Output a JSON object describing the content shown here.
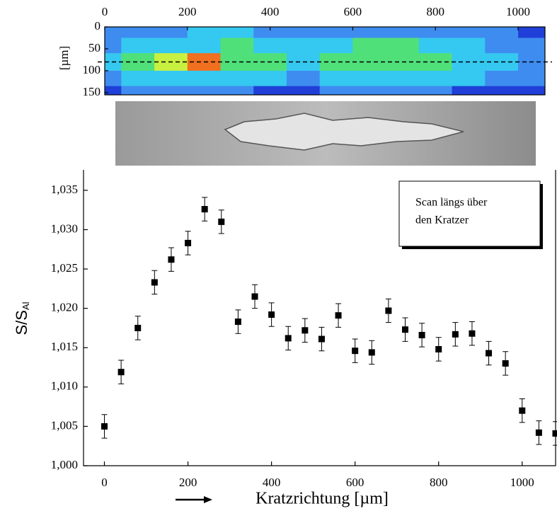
{
  "chart_data": [
    {
      "type": "heatmap",
      "ylabel": "[µm]",
      "x": [
        0,
        80,
        160,
        240,
        320,
        400,
        480,
        560,
        640,
        720,
        800,
        880,
        960,
        1040
      ],
      "y": [
        10,
        40,
        80,
        120,
        150
      ],
      "z": [
        [
          1,
          1,
          1,
          2,
          2,
          1,
          1,
          1,
          1,
          1,
          1,
          1,
          1,
          0
        ],
        [
          1,
          2,
          2,
          2,
          3,
          2,
          2,
          2,
          3,
          3,
          2,
          2,
          1,
          1
        ],
        [
          2,
          3,
          4,
          5,
          3,
          3,
          2,
          3,
          3,
          3,
          3,
          2,
          2,
          1
        ],
        [
          1,
          2,
          2,
          2,
          2,
          2,
          1,
          2,
          2,
          2,
          2,
          2,
          1,
          1
        ],
        [
          0,
          1,
          1,
          1,
          1,
          0,
          0,
          1,
          1,
          1,
          1,
          0,
          0,
          0
        ]
      ],
      "level_colors": [
        "#1f3fd8",
        "#3f8cf0",
        "#35c8f0",
        "#50e07a",
        "#c8f040",
        "#f07020"
      ],
      "hline": 80,
      "xlim": [
        0,
        1065
      ],
      "xticks": [
        0,
        200,
        400,
        600,
        800,
        1000
      ],
      "ylim": [
        0,
        155
      ],
      "yticks": [
        0,
        50,
        100,
        150
      ]
    },
    {
      "type": "scatter",
      "xlabel": "Kratzrichtung [µm]",
      "ylabel": "S/S",
      "ylabel_sub": "Al",
      "annotation": [
        "Scan längs über",
        "den Kratzer"
      ],
      "x": [
        0,
        40,
        80,
        120,
        160,
        200,
        240,
        280,
        320,
        360,
        400,
        440,
        480,
        520,
        560,
        600,
        640,
        680,
        720,
        760,
        800,
        840,
        880,
        920,
        960,
        1000,
        1040,
        1080
      ],
      "series": [
        {
          "color": "#000000",
          "values": [
            1.005,
            1.0119,
            1.0175,
            1.0233,
            1.0262,
            1.0283,
            1.0326,
            1.031,
            1.0183,
            1.0215,
            1.0192,
            1.0162,
            1.0172,
            1.0161,
            1.0191,
            1.0146,
            1.0144,
            1.0197,
            1.0173,
            1.0166,
            1.0148,
            1.0167,
            1.0168,
            1.0143,
            1.013,
            1.007,
            1.0042,
            1.0041
          ],
          "errors": [
            0.0015,
            0.0015,
            0.0015,
            0.0015,
            0.0015,
            0.0015,
            0.0015,
            0.0015,
            0.0015,
            0.0015,
            0.0015,
            0.0015,
            0.0015,
            0.0015,
            0.0015,
            0.0015,
            0.0015,
            0.0015,
            0.0015,
            0.0015,
            0.0015,
            0.0015,
            0.0015,
            0.0015,
            0.0015,
            0.0015,
            0.0015,
            0.0015
          ]
        }
      ],
      "xlim": [
        -50,
        1080
      ],
      "xticks": [
        0,
        200,
        400,
        600,
        800,
        1000
      ],
      "ylim": [
        1.0,
        1.0376
      ],
      "yticks": [
        {
          "value": 1.0,
          "label": "1,000"
        },
        {
          "value": 1.005,
          "label": "1,005"
        },
        {
          "value": 1.01,
          "label": "1,010"
        },
        {
          "value": 1.015,
          "label": "1,015"
        },
        {
          "value": 1.02,
          "label": "1,020"
        },
        {
          "value": 1.025,
          "label": "1,025"
        },
        {
          "value": 1.03,
          "label": "1,030"
        },
        {
          "value": 1.035,
          "label": "1,035"
        }
      ]
    }
  ]
}
